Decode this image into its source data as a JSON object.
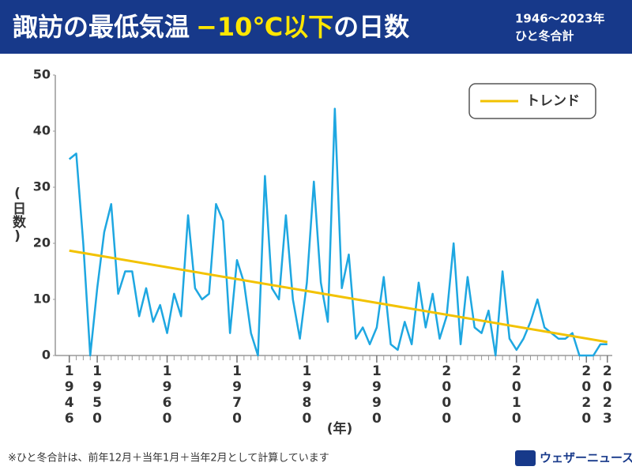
{
  "chart_data": {
    "type": "line",
    "title_parts": [
      "諏訪の最低気温",
      "−10℃以下",
      "の日数"
    ],
    "subtitle": [
      "1946〜2023年",
      "ひと冬合計"
    ],
    "y_label": "(日数)",
    "x_label": "(年)",
    "note": "※ひと冬合計は、前年12月＋当年1月＋当年2月として計算しています",
    "source": "ウェザーニュース",
    "x": [
      1946,
      1947,
      1948,
      1949,
      1950,
      1951,
      1952,
      1953,
      1954,
      1955,
      1956,
      1957,
      1958,
      1959,
      1960,
      1961,
      1962,
      1963,
      1964,
      1965,
      1966,
      1967,
      1968,
      1969,
      1970,
      1971,
      1972,
      1973,
      1974,
      1975,
      1976,
      1977,
      1978,
      1979,
      1980,
      1981,
      1982,
      1983,
      1984,
      1985,
      1986,
      1987,
      1988,
      1989,
      1990,
      1991,
      1992,
      1993,
      1994,
      1995,
      1996,
      1997,
      1998,
      1999,
      2000,
      2001,
      2002,
      2003,
      2004,
      2005,
      2006,
      2007,
      2008,
      2009,
      2010,
      2011,
      2012,
      2013,
      2014,
      2015,
      2016,
      2017,
      2018,
      2019,
      2020,
      2021,
      2022,
      2023
    ],
    "series": [
      {
        "color": "#1ea7e1",
        "values": [
          35,
          36,
          20,
          0,
          12,
          22,
          27,
          11,
          15,
          15,
          7,
          12,
          6,
          9,
          4,
          11,
          7,
          25,
          12,
          10,
          11,
          27,
          24,
          4,
          17,
          13,
          4,
          0,
          32,
          12,
          10,
          25,
          10,
          3,
          13,
          31,
          13,
          6,
          44,
          12,
          18,
          3,
          5,
          2,
          5,
          14,
          2,
          1,
          6,
          2,
          13,
          5,
          11,
          3,
          7,
          20,
          2,
          14,
          5,
          4,
          8,
          0,
          15,
          3,
          1,
          3,
          6,
          10,
          5,
          4,
          3,
          3,
          4,
          0,
          0,
          0,
          2,
          2
        ]
      },
      {
        "name": "トレンド",
        "color": "#f2c200",
        "x": [
          1946,
          2023
        ],
        "values": [
          18.7,
          2.4
        ]
      }
    ],
    "xlim": [
      1944,
      2023.7
    ],
    "ylim": [
      0,
      50
    ],
    "xticks": [
      1946,
      1950,
      1960,
      1970,
      1980,
      1990,
      2000,
      2010,
      2020,
      2023
    ],
    "yticks": [
      0,
      10,
      20,
      30,
      40,
      50
    ],
    "legend": "top-right"
  }
}
